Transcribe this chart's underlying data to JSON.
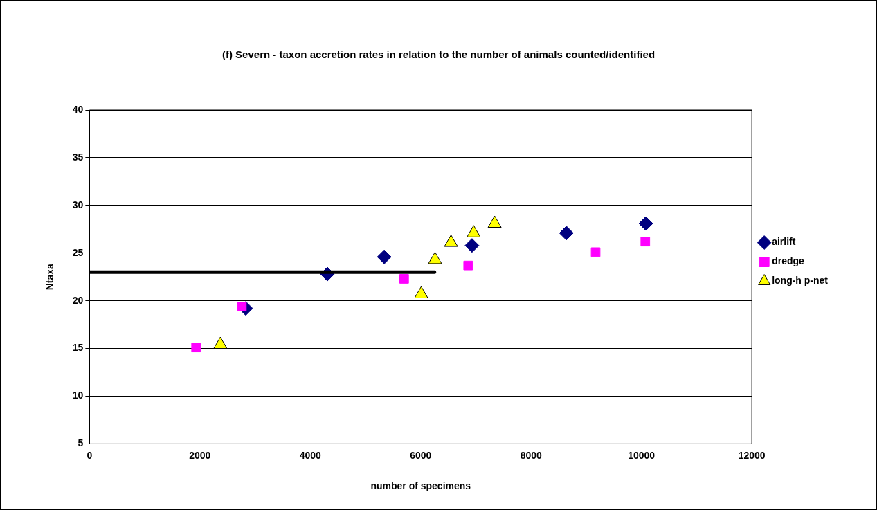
{
  "chart_data": {
    "type": "scatter",
    "title": "(f) Severn - taxon accretion rates in relation to the number of animals counted/identified",
    "xlabel": "number of specimens",
    "ylabel": "Ntaxa",
    "xlim": [
      0,
      12000
    ],
    "xticks": [
      0,
      2000,
      4000,
      6000,
      8000,
      10000,
      12000
    ],
    "ylim": [
      5,
      40
    ],
    "yticks": [
      5,
      10,
      15,
      20,
      25,
      30,
      35,
      40
    ],
    "grid": "y",
    "legend": "right",
    "series": [
      {
        "name": "airlift",
        "color": "#000080",
        "marker": "diamond",
        "x": [
          2830,
          4310,
          5340,
          6930,
          8640,
          10080
        ],
        "values": [
          19.2,
          22.8,
          24.6,
          25.8,
          27.1,
          28.1
        ]
      },
      {
        "name": "dredge",
        "color": "#ff00ff",
        "marker": "square",
        "x": [
          1930,
          2760,
          5700,
          6860,
          9170,
          10070
        ],
        "values": [
          15.1,
          19.4,
          22.3,
          23.7,
          25.1,
          26.2
        ]
      },
      {
        "name": "long-h p-net",
        "color": "#ffff00",
        "marker": "triangle",
        "x": [
          2370,
          6010,
          6260,
          6550,
          6960,
          7340
        ],
        "values": [
          15.4,
          20.7,
          24.3,
          26.1,
          27.1,
          28.1
        ]
      },
      {
        "type": "line",
        "color": "#000000",
        "marker": "none",
        "x": [
          0,
          6250
        ],
        "values": [
          23,
          23
        ]
      }
    ]
  }
}
